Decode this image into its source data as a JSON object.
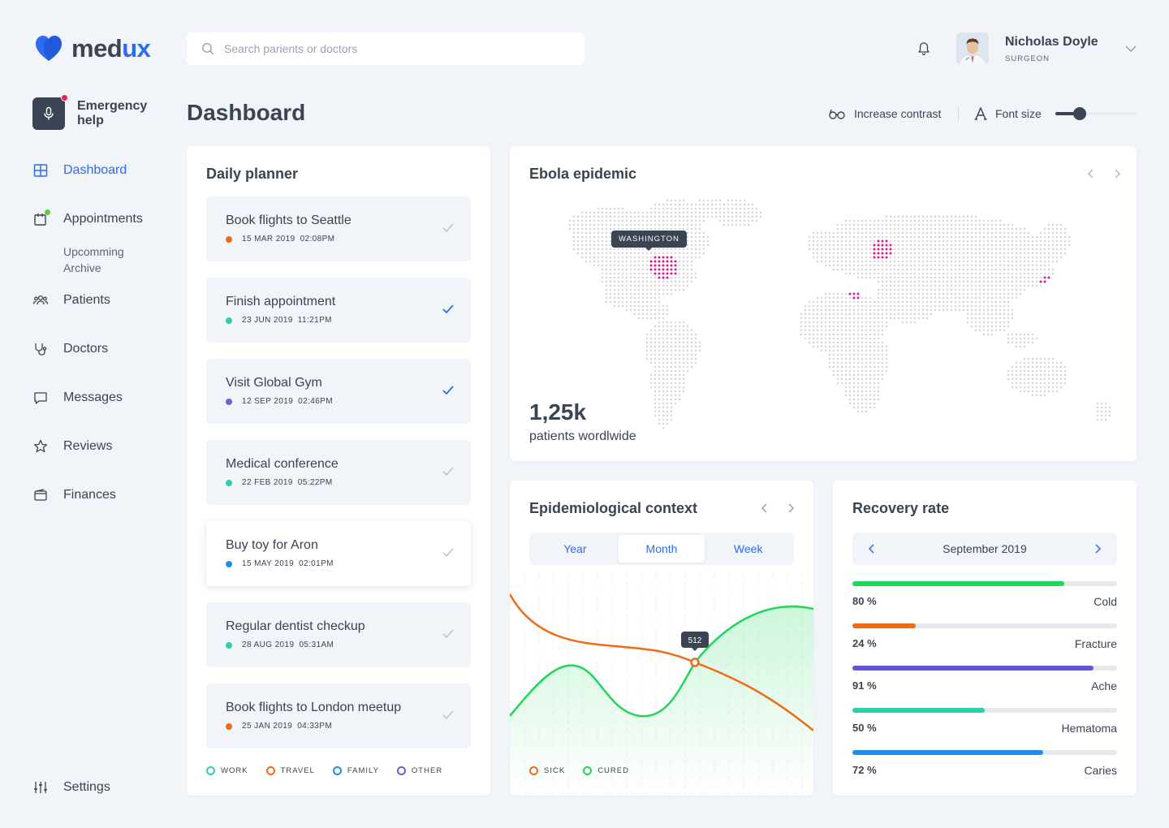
{
  "brand": {
    "name_a": "med",
    "name_b": "ux",
    "accent": "#2d6bf0"
  },
  "search": {
    "placeholder": "Search parients or doctors"
  },
  "user": {
    "name": "Nicholas Doyle",
    "role": "SURGEON"
  },
  "emergency": {
    "label": "Emergency help"
  },
  "nav": {
    "dashboard": "Dashboard",
    "appointments": "Appointments",
    "upcoming": "Upcomming",
    "archive": "Archive",
    "patients": "Patients",
    "doctors": "Doctors",
    "messages": "Messages",
    "reviews": "Reviews",
    "finances": "Finances",
    "settings": "Settings"
  },
  "header": {
    "title": "Dashboard",
    "contrast_label": "Increase contrast",
    "fontsize_label": "Font size",
    "font_size_level": 0.3
  },
  "planner": {
    "title": "Daily planner",
    "tasks": [
      {
        "title": "Book flights to Seattle",
        "date": "15 MAR 2019",
        "time": "02:08PM",
        "color": "#ef6c16",
        "done": false
      },
      {
        "title": "Finish appointment",
        "date": "23 JUN 2019",
        "time": "11:21PM",
        "color": "#2fcfae",
        "done": true
      },
      {
        "title": "Visit Global Gym",
        "date": "12 SEP 2019",
        "time": "02:46PM",
        "color": "#6f5fd9",
        "done": true
      },
      {
        "title": "Medical conference",
        "date": "22 FEB 2019",
        "time": "05:22PM",
        "color": "#2fcfae",
        "done": false
      },
      {
        "title": "Buy toy for Aron",
        "date": "15 MAY 2019",
        "time": "02:01PM",
        "color": "#1c8ef0",
        "done": false
      },
      {
        "title": "Regular dentist checkup",
        "date": "28 AUG 2019",
        "time": "05:31AM",
        "color": "#2fcfae",
        "done": false
      },
      {
        "title": "Book flights to London meetup",
        "date": "25 JAN 2019",
        "time": "04:33PM",
        "color": "#ef6c16",
        "done": false
      }
    ],
    "legend": [
      {
        "label": "WORK",
        "color": "#2fcfae"
      },
      {
        "label": "TRAVEL",
        "color": "#ef6c16"
      },
      {
        "label": "FAMILY",
        "color": "#1c8ef0"
      },
      {
        "label": "OTHER",
        "color": "#6f5fd9"
      }
    ]
  },
  "ebola": {
    "title": "Ebola epidemic",
    "tooltip": "WASHINGTON",
    "count": "1,25k",
    "count_label": "patients wordlwide",
    "land_color": "#d4d4d8",
    "hotspot_color": "#e0168c"
  },
  "epi": {
    "title": "Epidemiological context",
    "tabs": [
      "Year",
      "Month",
      "Week"
    ],
    "active_tab": "Month",
    "tooltip": "512",
    "legend": [
      {
        "label": "SICK",
        "color": "#ef6c16"
      },
      {
        "label": "CURED",
        "color": "#1fd55b"
      }
    ]
  },
  "recovery": {
    "title": "Recovery rate",
    "month": "September 2019",
    "rows": [
      {
        "pct": "80 %",
        "value": 0.8,
        "name": "Cold",
        "color": "#1fd55b"
      },
      {
        "pct": "24 %",
        "value": 0.24,
        "name": "Fracture",
        "color": "#ef6c16"
      },
      {
        "pct": "91 %",
        "value": 0.91,
        "name": "Ache",
        "color": "#6155d6"
      },
      {
        "pct": "50 %",
        "value": 0.5,
        "name": "Hematoma",
        "color": "#2fcfae"
      },
      {
        "pct": "72 %",
        "value": 0.72,
        "name": "Caries",
        "color": "#1c8ef0"
      }
    ]
  },
  "icons": [
    "logo-heart-icon",
    "search-icon",
    "bell-icon",
    "chevron-down-icon",
    "microphone-icon",
    "grid-icon",
    "calendar-icon",
    "users-icon",
    "stethoscope-icon",
    "chat-icon",
    "star-icon",
    "wallet-icon",
    "sliders-icon",
    "glasses-icon",
    "font-icon",
    "check-icon",
    "chevron-left-icon",
    "chevron-right-icon"
  ]
}
